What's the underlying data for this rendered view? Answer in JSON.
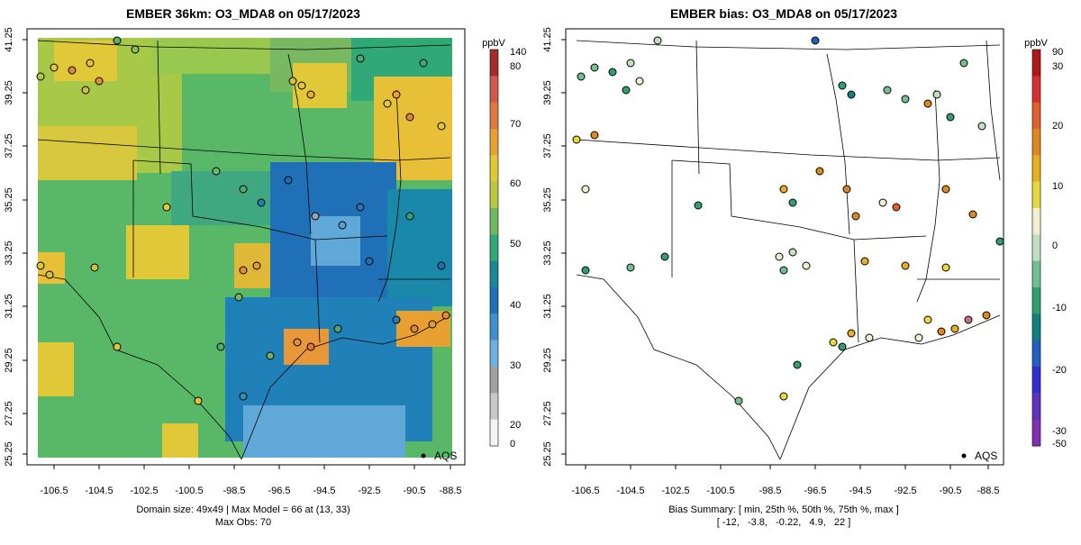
{
  "left_panel": {
    "title": "EMBER 36km: O3_MDA8 on 05/17/2023",
    "x_ticks": [
      "-106.5",
      "-104.5",
      "-102.5",
      "-100.5",
      "-98.5",
      "-96.5",
      "-94.5",
      "-92.5",
      "-90.5",
      "-88.5"
    ],
    "y_ticks": [
      "41.25",
      "39.25",
      "37.25",
      "35.25",
      "33.25",
      "31.25",
      "29.25",
      "27.25",
      "25.25"
    ],
    "legend_marker_label": "AQS",
    "colorbar": {
      "unit": "ppbV",
      "ticks": [
        "140",
        "80",
        "70",
        "60",
        "50",
        "40",
        "30",
        "20",
        "0"
      ],
      "colors": [
        "#a52a2a",
        "#d05a4a",
        "#e07840",
        "#e8a030",
        "#e0c838",
        "#b8c840",
        "#70b860",
        "#30a878",
        "#1a8898",
        "#2070b8",
        "#4090d0",
        "#70b0e0",
        "#a0a0a0",
        "#c8c8c8",
        "#f4f4f4"
      ]
    },
    "summary_line1": "Domain size: 49x49 | Max Model = 66 at (13, 33)",
    "summary_line2": "Max Obs: 70"
  },
  "right_panel": {
    "title": "EMBER bias: O3_MDA8 on 05/17/2023",
    "x_ticks": [
      "-106.5",
      "-104.5",
      "-102.5",
      "-100.5",
      "-98.5",
      "-96.5",
      "-94.5",
      "-92.5",
      "-90.5",
      "-88.5"
    ],
    "y_ticks": [
      "41.25",
      "39.25",
      "37.25",
      "35.25",
      "33.25",
      "31.25",
      "29.25",
      "27.25",
      "25.25"
    ],
    "legend_marker_label": "AQS",
    "colorbar": {
      "unit": "ppbV",
      "ticks": [
        "90",
        "30",
        "20",
        "10",
        "0",
        "-10",
        "-20",
        "-30",
        "-50"
      ],
      "colors": [
        "#b01818",
        "#d83030",
        "#e06030",
        "#e08820",
        "#e8b020",
        "#e8d840",
        "#f0f0d0",
        "#c0e0c0",
        "#70c090",
        "#30a070",
        "#108080",
        "#2060c0",
        "#3030d0",
        "#6030c0",
        "#8030b0"
      ]
    },
    "summary_line1": "Bias Summary: [ min, 25th %, 50th %, 75th %, max ]",
    "summary_line2": "[ -12,   -3.8,   -0.22,   4.9,   22 ]"
  }
}
